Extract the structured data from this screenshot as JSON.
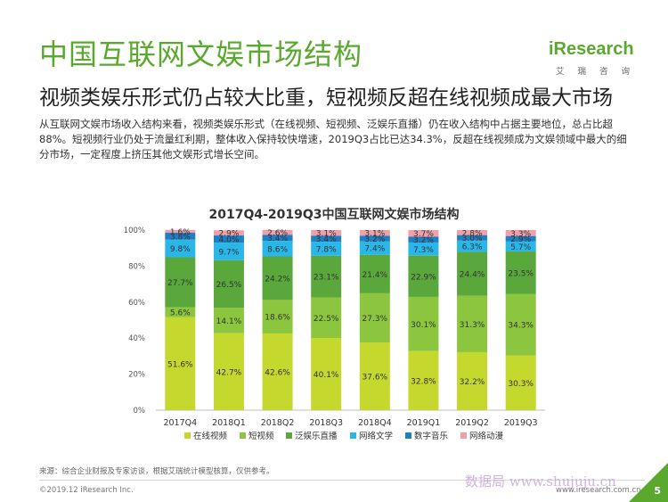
{
  "header": {
    "title": "中国互联网文娱市场结构",
    "subtitle": "视频类娱乐形式仍占较大比重，短视频反超在线视频成最大市场",
    "paragraph": "从互联网文娱市场收入结构来看，视频类娱乐形式（在线视频、短视频、泛娱乐直播）仍在收入结构中占据主要地位，总占比超88%。短视频行业仍处于流量红利期，整体收入保持较快增速，2019Q3占比已达34.3%，反超在线视频成为文娱领域中最大的细分市场，一定程度上挤压其他文娱形式增长空间。"
  },
  "logo": {
    "name": "iResearch",
    "subtitle": "艾 瑞 咨 询"
  },
  "chart_data": {
    "type": "bar",
    "stacked": true,
    "title": "2017Q4-2019Q3中国互联网文娱市场结构",
    "categories": [
      "2017Q4",
      "2018Q1",
      "2018Q2",
      "2018Q3",
      "2018Q4",
      "2019Q1",
      "2019Q2",
      "2019Q3"
    ],
    "yticks": [
      "0%",
      "20%",
      "40%",
      "60%",
      "80%",
      "100%"
    ],
    "ylim": [
      0,
      100
    ],
    "legend_position": "bottom",
    "series": [
      {
        "name": "在线视频",
        "color": "#c4d82e",
        "values": [
          51.6,
          42.7,
          42.6,
          40.1,
          37.6,
          32.8,
          32.2,
          30.3
        ],
        "labels": [
          "51.6%",
          "42.7%",
          "42.6%",
          "40.1%",
          "37.6%",
          "32.8%",
          "32.2%",
          "30.3%"
        ]
      },
      {
        "name": "短视频",
        "color": "#8cc63f",
        "values": [
          5.6,
          14.1,
          18.6,
          22.5,
          27.3,
          30.1,
          31.3,
          34.3
        ],
        "labels": [
          "5.6%",
          "14.1%",
          "18.6%",
          "22.5%",
          "27.3%",
          "30.1%",
          "31.3%",
          "34.3%"
        ]
      },
      {
        "name": "泛娱乐直播",
        "color": "#5aa83c",
        "values": [
          27.7,
          26.5,
          24.2,
          23.1,
          21.4,
          22.9,
          24.4,
          23.5
        ],
        "labels": [
          "27.7%",
          "26.5%",
          "24.2%",
          "23.1%",
          "21.4%",
          "22.9%",
          "24.4%",
          "23.5%"
        ]
      },
      {
        "name": "网络文学",
        "color": "#29b6e8",
        "values": [
          9.8,
          9.7,
          8.6,
          7.8,
          7.4,
          7.3,
          6.3,
          5.7
        ],
        "labels": [
          "9.8%",
          "9.7%",
          "8.6%",
          "7.8%",
          "7.4%",
          "7.3%",
          "6.3%",
          "5.7%"
        ]
      },
      {
        "name": "数字音乐",
        "color": "#1f7fc4",
        "values": [
          3.8,
          4.0,
          3.4,
          3.4,
          3.2,
          3.2,
          3.0,
          2.9
        ],
        "labels": [
          "3.8%",
          "4.0%",
          "3.4%",
          "3.4%",
          "3.2%",
          "3.2%",
          "3.0%",
          "2.9%"
        ]
      },
      {
        "name": "网络动漫",
        "color": "#f0a0a8",
        "values": [
          1.6,
          2.9,
          2.6,
          3.1,
          3.1,
          3.7,
          2.8,
          3.3
        ],
        "labels": [
          "1.6%",
          "2.9%",
          "2.6%",
          "3.1%",
          "3.1%",
          "3.7%",
          "2.8%",
          "3.3%"
        ]
      }
    ]
  },
  "footer": {
    "source": "来源：综合企业财报及专家访谈，根据艾瑞统计模型核算，仅供参考。",
    "copyright": "©2019.12 iResearch Inc.",
    "site": "www.iresearch.com.cn",
    "watermark": "数据局 www.shujuju.cn",
    "page_number": "5"
  }
}
